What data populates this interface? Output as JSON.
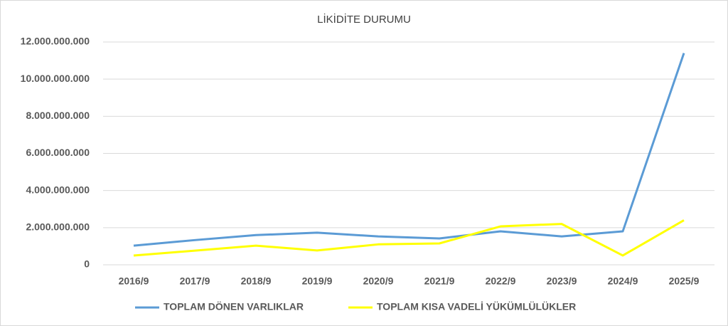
{
  "chart_data": {
    "type": "line",
    "title": "LİKİDİTE DURUMU",
    "categories": [
      "2016/9",
      "2017/9",
      "2018/9",
      "2019/9",
      "2020/9",
      "2021/9",
      "2022/9",
      "2023/9",
      "2024/9",
      "2025/9"
    ],
    "series": [
      {
        "name": "TOPLAM DÖNEN VARLIKLAR",
        "color": "#5b9bd5",
        "values": [
          1030000000,
          1330000000,
          1600000000,
          1730000000,
          1530000000,
          1420000000,
          1800000000,
          1530000000,
          1800000000,
          11400000000
        ]
      },
      {
        "name": "TOPLAM KISA VADELİ YÜKÜMLÜLÜKLER",
        "color": "#ffff00",
        "values": [
          500000000,
          760000000,
          1030000000,
          770000000,
          1100000000,
          1150000000,
          2070000000,
          2200000000,
          500000000,
          2400000000
        ]
      }
    ],
    "ylim": [
      0,
      12000000000
    ],
    "yticks": [
      0,
      {
        "value": 2000000000,
        "label": "2.000.000.000"
      },
      {
        "value": 4000000000,
        "label": "4.000.000.000"
      },
      {
        "value": 6000000000,
        "label": "6.000.000.000"
      },
      {
        "value": 8000000000,
        "label": "8.000.000.000"
      },
      {
        "value": 10000000000,
        "label": "10.000.000.000"
      },
      {
        "value": 12000000000,
        "label": "12.000.000.000"
      }
    ],
    "grid": true,
    "legend": "bottom"
  }
}
